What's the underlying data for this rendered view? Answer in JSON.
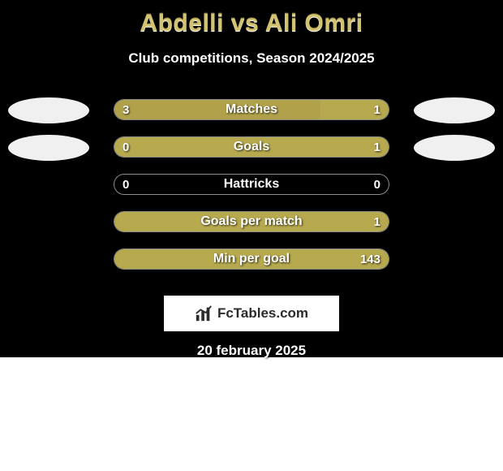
{
  "title": "Abdelli vs Ali Omri",
  "subtitle": "Club competitions, Season 2024/2025",
  "date": "20 february 2025",
  "brand": "FcTables.com",
  "card": {
    "background_color": "#000000",
    "title_color": "#d3c26f"
  },
  "left_color": "#b0a14a",
  "right_color": "#b7a94e",
  "photos": {
    "placeholder_color": "#f0f0f0",
    "rows_with_photos": [
      0,
      1
    ]
  },
  "stats": [
    {
      "label": "Matches",
      "left_value": "3",
      "right_value": "1",
      "left_pct": 75,
      "right_pct": 25
    },
    {
      "label": "Goals",
      "left_value": "0",
      "right_value": "1",
      "left_pct": 0,
      "right_pct": 100
    },
    {
      "label": "Hattricks",
      "left_value": "0",
      "right_value": "0",
      "left_pct": 0,
      "right_pct": 0
    },
    {
      "label": "Goals per match",
      "left_value": "",
      "right_value": "1",
      "left_pct": 0,
      "right_pct": 100
    },
    {
      "label": "Min per goal",
      "left_value": "",
      "right_value": "143",
      "left_pct": 0,
      "right_pct": 100
    }
  ]
}
